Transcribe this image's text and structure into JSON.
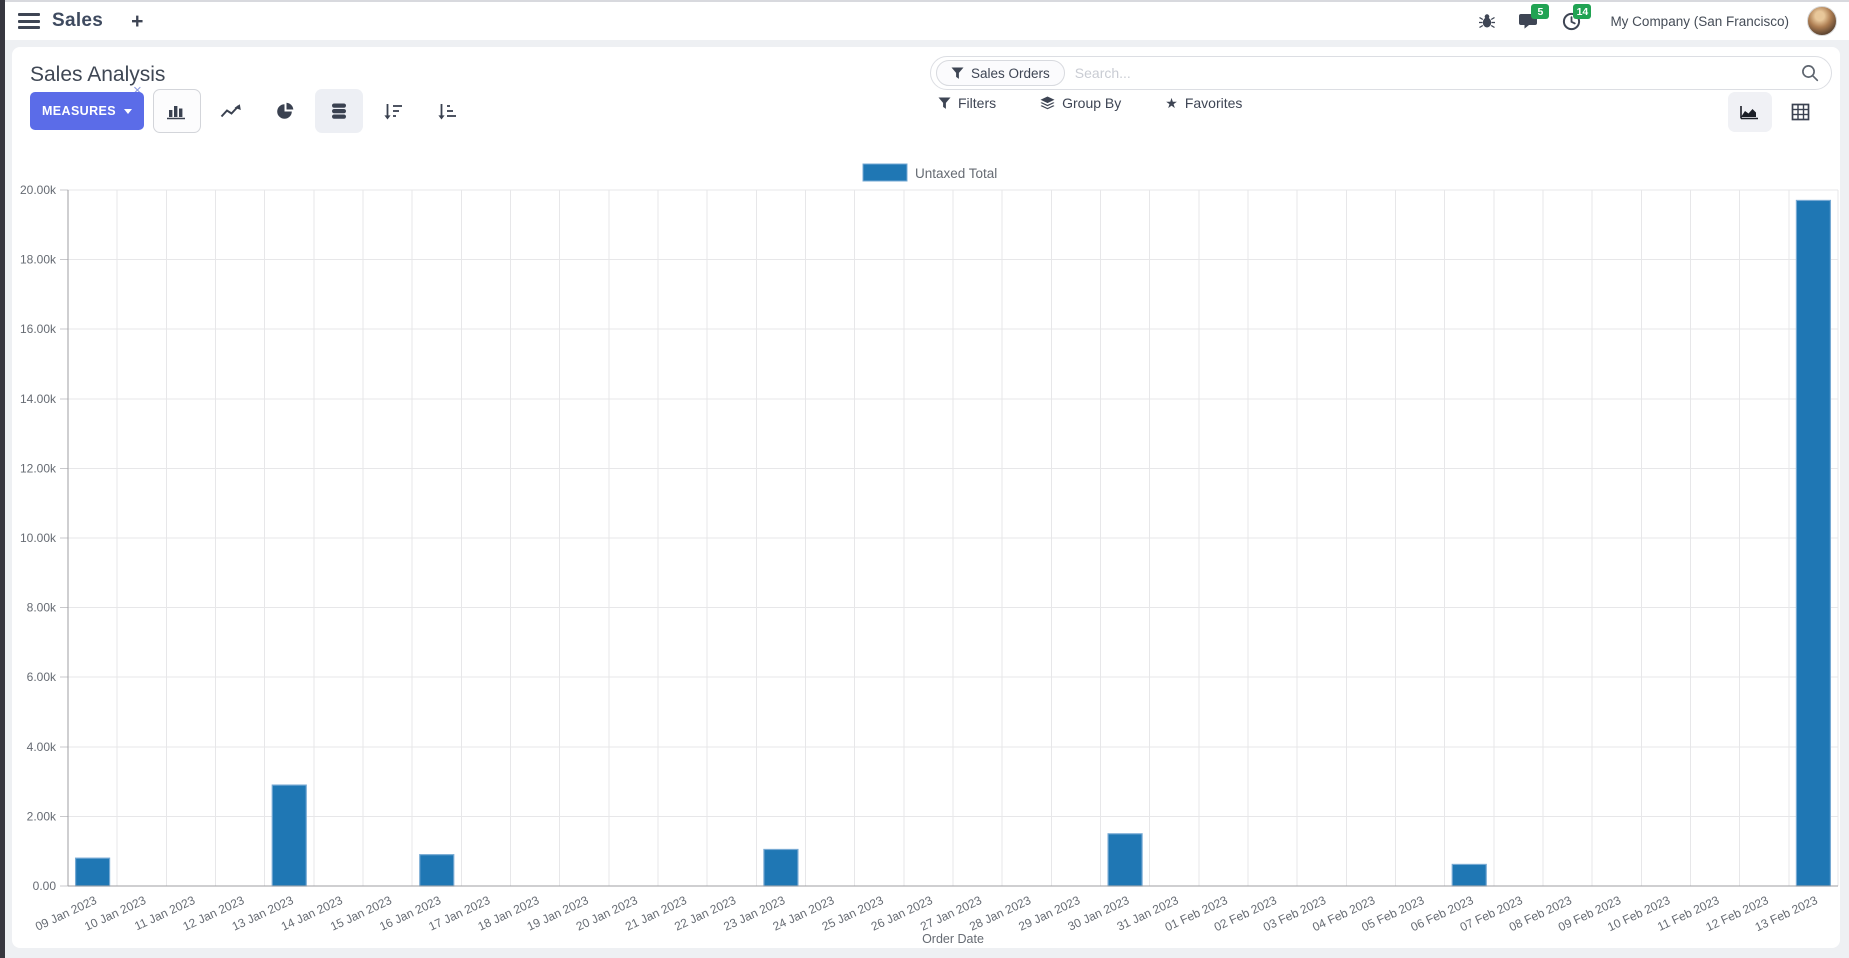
{
  "topbar": {
    "app_name": "Sales",
    "plus_label": "+",
    "messages_badge": "5",
    "activities_badge": "14",
    "company": "My Company (San Francisco)"
  },
  "control_panel": {
    "title": "Sales Analysis",
    "measures_label": "MEASURES",
    "search": {
      "facet": "Sales Orders",
      "remove_facet": "×",
      "placeholder": "Search..."
    },
    "filters_label": "Filters",
    "group_by_label": "Group By",
    "favorites_label": "Favorites",
    "icons": {
      "bar_chart": "bar-chart-icon",
      "line_chart": "line-chart-icon",
      "pie_chart": "pie-chart-icon",
      "stacked": "stacked-icon",
      "sort_descending": "sort-descending-icon",
      "sort_ascending": "sort-ascending-icon",
      "graph_view": "graph-view-icon",
      "pivot_view": "pivot-view-icon"
    }
  },
  "chart_data": {
    "type": "bar",
    "title": "",
    "legend": [
      "Untaxed Total"
    ],
    "legend_position": "top",
    "grid": true,
    "series_color": "#1f77b4",
    "series_border_color": "#76a9d3",
    "xlabel": "Order Date",
    "ylabel": "",
    "ylim": [
      0,
      20000
    ],
    "y_ticks": [
      "0.00",
      "2.00k",
      "4.00k",
      "6.00k",
      "8.00k",
      "10.00k",
      "12.00k",
      "14.00k",
      "16.00k",
      "18.00k",
      "20.00k"
    ],
    "categories": [
      "09 Jan 2023",
      "10 Jan 2023",
      "11 Jan 2023",
      "12 Jan 2023",
      "13 Jan 2023",
      "14 Jan 2023",
      "15 Jan 2023",
      "16 Jan 2023",
      "17 Jan 2023",
      "18 Jan 2023",
      "19 Jan 2023",
      "20 Jan 2023",
      "21 Jan 2023",
      "22 Jan 2023",
      "23 Jan 2023",
      "24 Jan 2023",
      "25 Jan 2023",
      "26 Jan 2023",
      "27 Jan 2023",
      "28 Jan 2023",
      "29 Jan 2023",
      "30 Jan 2023",
      "31 Jan 2023",
      "01 Feb 2023",
      "02 Feb 2023",
      "03 Feb 2023",
      "04 Feb 2023",
      "05 Feb 2023",
      "06 Feb 2023",
      "07 Feb 2023",
      "08 Feb 2023",
      "09 Feb 2023",
      "10 Feb 2023",
      "11 Feb 2023",
      "12 Feb 2023",
      "13 Feb 2023"
    ],
    "series": [
      {
        "name": "Untaxed Total",
        "values": [
          800,
          0,
          0,
          0,
          2900,
          0,
          0,
          900,
          0,
          0,
          0,
          0,
          0,
          0,
          1050,
          0,
          0,
          0,
          0,
          0,
          0,
          1500,
          0,
          0,
          0,
          0,
          0,
          0,
          620,
          0,
          0,
          0,
          0,
          0,
          0,
          19700
        ]
      }
    ]
  }
}
